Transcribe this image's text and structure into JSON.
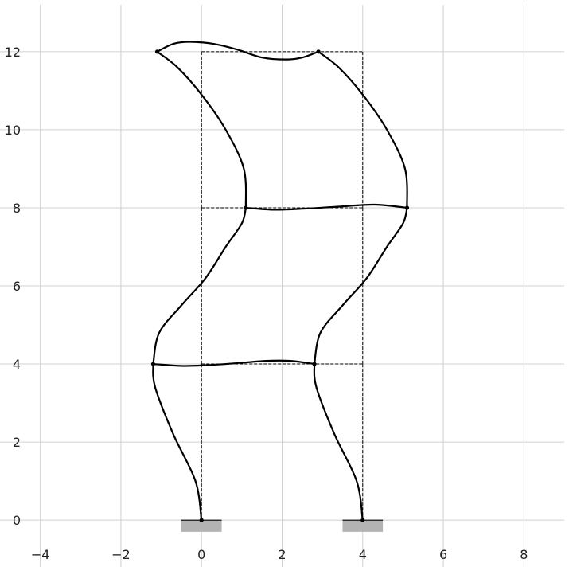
{
  "chart_data": {
    "type": "line",
    "title": "",
    "xlabel": "",
    "ylabel": "",
    "xlim": [
      -5,
      9
    ],
    "ylim": [
      -1.2,
      13.2
    ],
    "grid": true,
    "x_ticks": [
      -4,
      -2,
      0,
      2,
      4,
      6,
      8
    ],
    "y_ticks": [
      0,
      2,
      4,
      6,
      8,
      10,
      12
    ],
    "x_tick_labels": [
      "−4",
      "−2",
      "0",
      "2",
      "4",
      "6",
      "8"
    ],
    "y_tick_labels": [
      "0",
      "2",
      "4",
      "6",
      "8",
      "10",
      "12"
    ],
    "colors": {
      "grid": "#d0d0d0",
      "frame": "#000000",
      "deformed": "#000000",
      "support": "#b3b3b3",
      "text": "#222222"
    },
    "undeformed_frame": {
      "style": "dashed",
      "segments": [
        [
          [
            0,
            0
          ],
          [
            0,
            4
          ]
        ],
        [
          [
            0,
            4
          ],
          [
            0,
            8
          ]
        ],
        [
          [
            0,
            8
          ],
          [
            0,
            12
          ]
        ],
        [
          [
            4,
            0
          ],
          [
            4,
            4
          ]
        ],
        [
          [
            4,
            4
          ],
          [
            4,
            8
          ]
        ],
        [
          [
            4,
            8
          ],
          [
            4,
            12
          ]
        ],
        [
          [
            0,
            4
          ],
          [
            4,
            4
          ]
        ],
        [
          [
            0,
            8
          ],
          [
            4,
            8
          ]
        ],
        [
          [
            0,
            12
          ],
          [
            4,
            12
          ]
        ]
      ]
    },
    "deformed_shape": {
      "style": "solid",
      "series": [
        {
          "points": [
            [
              0,
              0
            ],
            [
              -0.15,
              1.0
            ],
            [
              -0.7,
              2.2
            ],
            [
              -1.15,
              3.4
            ],
            [
              -1.2,
              4.0
            ]
          ]
        },
        {
          "points": [
            [
              4,
              0
            ],
            [
              3.85,
              1.0
            ],
            [
              3.3,
              2.2
            ],
            [
              2.85,
              3.4
            ],
            [
              2.8,
              4.0
            ]
          ]
        },
        {
          "points": [
            [
              -1.2,
              4.0
            ],
            [
              -1.05,
              4.8
            ],
            [
              -0.5,
              5.5
            ],
            [
              0.1,
              6.2
            ],
            [
              0.6,
              7.0
            ],
            [
              1.0,
              7.6
            ],
            [
              1.1,
              8.0
            ]
          ]
        },
        {
          "points": [
            [
              2.8,
              4.0
            ],
            [
              2.95,
              4.8
            ],
            [
              3.5,
              5.5
            ],
            [
              4.1,
              6.2
            ],
            [
              4.6,
              7.0
            ],
            [
              5.0,
              7.6
            ],
            [
              5.1,
              8.0
            ]
          ]
        },
        {
          "points": [
            [
              1.1,
              8.0
            ],
            [
              1.05,
              9.0
            ],
            [
              0.6,
              10.0
            ],
            [
              0.0,
              10.9
            ],
            [
              -0.6,
              11.6
            ],
            [
              -1.1,
              12.0
            ]
          ]
        },
        {
          "points": [
            [
              5.1,
              8.0
            ],
            [
              5.05,
              9.0
            ],
            [
              4.6,
              10.0
            ],
            [
              4.0,
              10.9
            ],
            [
              3.4,
              11.6
            ],
            [
              2.9,
              12.0
            ]
          ]
        },
        {
          "points": [
            [
              -1.2,
              4.0
            ],
            [
              -0.4,
              3.95
            ],
            [
              0.6,
              4.0
            ],
            [
              1.6,
              4.08
            ],
            [
              2.2,
              4.08
            ],
            [
              2.8,
              4.0
            ]
          ]
        },
        {
          "points": [
            [
              1.1,
              8.0
            ],
            [
              1.8,
              7.95
            ],
            [
              2.6,
              7.98
            ],
            [
              3.4,
              8.03
            ],
            [
              4.3,
              8.08
            ],
            [
              5.1,
              8.0
            ]
          ]
        },
        {
          "points": [
            [
              -1.1,
              12.0
            ],
            [
              -0.7,
              12.2
            ],
            [
              -0.3,
              12.25
            ],
            [
              0.3,
              12.2
            ],
            [
              0.9,
              12.05
            ],
            [
              1.5,
              11.85
            ],
            [
              2.1,
              11.8
            ],
            [
              2.5,
              11.85
            ],
            [
              2.9,
              12.0
            ]
          ]
        }
      ],
      "nodes": [
        [
          0,
          0
        ],
        [
          4,
          0
        ],
        [
          -1.2,
          4.0
        ],
        [
          2.8,
          4.0
        ],
        [
          1.1,
          8.0
        ],
        [
          5.1,
          8.0
        ],
        [
          -1.1,
          12.0
        ],
        [
          2.9,
          12.0
        ]
      ]
    },
    "supports": [
      {
        "x": 0,
        "y": 0,
        "half_width": 0.5,
        "depth": 0.3
      },
      {
        "x": 4,
        "y": 0,
        "half_width": 0.5,
        "depth": 0.3
      }
    ]
  }
}
